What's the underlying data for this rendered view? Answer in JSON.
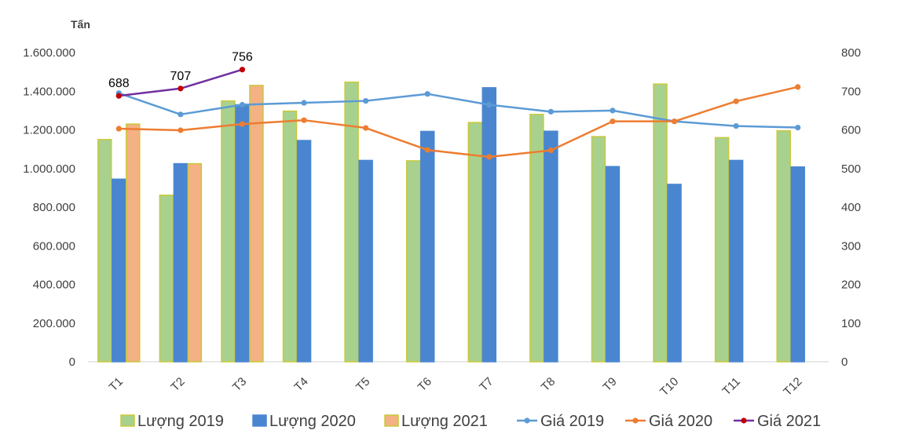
{
  "chart_data": {
    "type": "bar",
    "y_unit_label": "Tấn",
    "categories": [
      "T1",
      "T2",
      "T3",
      "T4",
      "T5",
      "T6",
      "T7",
      "T8",
      "T9",
      "T10",
      "T11",
      "T12"
    ],
    "y_left": {
      "range": [
        0,
        1600000
      ],
      "ticks": [
        "0",
        "200.000",
        "400.000",
        "600.000",
        "800.000",
        "1.000.000",
        "1.200.000",
        "1.400.000",
        "1.600.000"
      ]
    },
    "y_right": {
      "range": [
        0,
        800
      ],
      "ticks": [
        "0",
        "100",
        "200",
        "300",
        "400",
        "500",
        "600",
        "700",
        "800"
      ]
    },
    "bar_series": [
      {
        "name": "Lượng 2019",
        "color": "#a9d18e",
        "edge": "#c9c93a",
        "values": [
          1150000,
          862000,
          1350000,
          1297000,
          1447000,
          1040000,
          1238000,
          1280000,
          1165000,
          1437000,
          1160000,
          1195000
        ]
      },
      {
        "name": "Lượng 2020",
        "color": "#4a86d0",
        "edge": "#4a86d0",
        "values": [
          945000,
          1025000,
          1330000,
          1145000,
          1042000,
          1192000,
          1418000,
          1193000,
          1010000,
          918000,
          1042000,
          1008000
        ]
      },
      {
        "name": "Lượng 2021",
        "color": "#f4b183",
        "edge": "#c9c93a",
        "values": [
          1230000,
          1025000,
          1430000
        ]
      }
    ],
    "line_series": [
      {
        "name": "Giá 2019",
        "color": "#5b9bd5",
        "axis": "right",
        "values": [
          695,
          640,
          665,
          670,
          675,
          693,
          665,
          647,
          650,
          622,
          610,
          606
        ]
      },
      {
        "name": "Giá 2020",
        "color": "#ed7d31",
        "axis": "right",
        "values": [
          603,
          599,
          615,
          625,
          605,
          548,
          530,
          547,
          622,
          622,
          674,
          711
        ]
      },
      {
        "name": "Giá 2021",
        "color": "#7030a0",
        "marker_color": "#c00000",
        "axis": "right",
        "values": [
          688,
          707,
          756
        ],
        "labels": [
          "688",
          "707",
          "756"
        ]
      }
    ],
    "legend": {
      "position": "bottom"
    },
    "grid": false
  }
}
